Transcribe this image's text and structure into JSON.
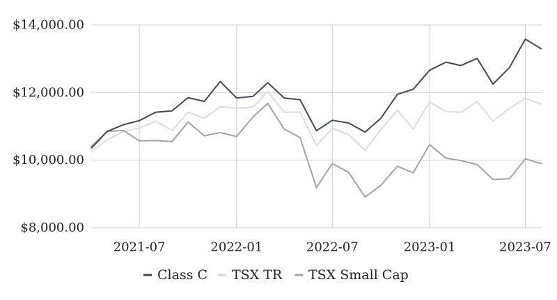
{
  "chart_data": {
    "type": "line",
    "x": [
      "2021-04",
      "2021-05",
      "2021-06",
      "2021-07",
      "2021-08",
      "2021-09",
      "2021-10",
      "2021-11",
      "2021-12",
      "2022-01",
      "2022-02",
      "2022-03",
      "2022-04",
      "2022-05",
      "2022-06",
      "2022-07",
      "2022-08",
      "2022-09",
      "2022-10",
      "2022-11",
      "2022-12",
      "2023-01",
      "2023-02",
      "2023-03",
      "2023-04",
      "2023-05",
      "2023-06",
      "2023-07",
      "2023-08"
    ],
    "series": [
      {
        "name": "Class C",
        "color": "#3d4a5e",
        "values": [
          10350,
          10850,
          11050,
          11170,
          11420,
          11460,
          11850,
          11740,
          12330,
          11840,
          11890,
          12290,
          11840,
          11790,
          10870,
          11180,
          11100,
          10830,
          11240,
          11950,
          12100,
          12660,
          12900,
          12800,
          13010,
          12250,
          12740,
          13580,
          13290
        ]
      },
      {
        "name": "TSX TR",
        "color": "#dcdcdc",
        "values": [
          10250,
          10600,
          10850,
          10950,
          11150,
          10880,
          11420,
          11240,
          11580,
          11540,
          11570,
          12030,
          11420,
          11430,
          10440,
          10940,
          10760,
          10290,
          10910,
          11480,
          10920,
          11720,
          11440,
          11420,
          11730,
          11160,
          11530,
          11830,
          11660
        ]
      },
      {
        "name": "TSX Small Cap",
        "color": "#a3a3a3",
        "values": [
          10400,
          10850,
          10880,
          10570,
          10580,
          10550,
          11130,
          10720,
          10820,
          10700,
          11280,
          11680,
          10920,
          10670,
          9190,
          9900,
          9640,
          8910,
          9260,
          9820,
          9630,
          10460,
          10060,
          9990,
          9870,
          9430,
          9450,
          10040,
          9890
        ]
      }
    ],
    "x_ticks": [
      "2021-07",
      "2022-01",
      "2022-07",
      "2023-01",
      "2023-07"
    ],
    "y_ticks": [
      "$8,000.00",
      "$10,000.00",
      "$12,000.00",
      "$14,000.00"
    ],
    "y_tick_values": [
      8000,
      10000,
      12000,
      14000
    ],
    "ylim": [
      8000,
      14000
    ],
    "grid": true,
    "legend_position": "bottom"
  }
}
